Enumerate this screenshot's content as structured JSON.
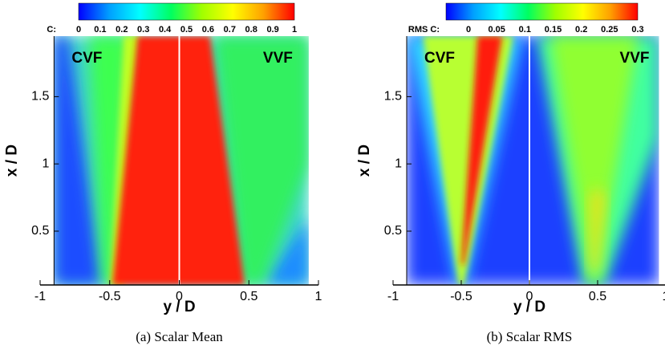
{
  "chart_data": [
    {
      "type": "contour",
      "caption": "(a) Scalar Mean",
      "xlabel": "y / D",
      "ylabel": "x / D",
      "xlim": [
        -1,
        1
      ],
      "xticks": [
        -1,
        -0.5,
        0,
        0.5,
        1
      ],
      "ylim": [
        0.1,
        1.95
      ],
      "yticks": [
        0.5,
        1,
        1.5
      ],
      "annotations": [
        "CVF",
        "VVF"
      ],
      "colorbar": {
        "label": "C:",
        "range": [
          0,
          1
        ],
        "ticks": [
          0,
          0.1,
          0.2,
          0.3,
          0.4,
          0.5,
          0.6,
          0.7,
          0.8,
          0.9,
          1
        ],
        "colors": [
          "#0000ff",
          "#00a0ff",
          "#00ffff",
          "#00ff60",
          "#a0ff00",
          "#ffff00",
          "#ffa000",
          "#ff0000"
        ]
      }
    },
    {
      "type": "contour",
      "caption": "(b) Scalar RMS",
      "xlabel": "y / D",
      "ylabel": "x / D",
      "xlim": [
        -1,
        1
      ],
      "xticks": [
        -1,
        -0.5,
        0,
        0.5,
        1
      ],
      "ylim": [
        0.1,
        1.95
      ],
      "yticks": [
        0.5,
        1,
        1.5
      ],
      "annotations": [
        "CVF",
        "VVF"
      ],
      "colorbar": {
        "label": "RMS C:",
        "range": [
          0,
          0.3
        ],
        "ticks": [
          0,
          0.05,
          0.1,
          0.15,
          0.2,
          0.25,
          0.3
        ],
        "colors": [
          "#0000ff",
          "#00a0ff",
          "#00ffff",
          "#00ff60",
          "#a0ff00",
          "#ffff00",
          "#ffa000",
          "#ff0000"
        ]
      }
    }
  ]
}
